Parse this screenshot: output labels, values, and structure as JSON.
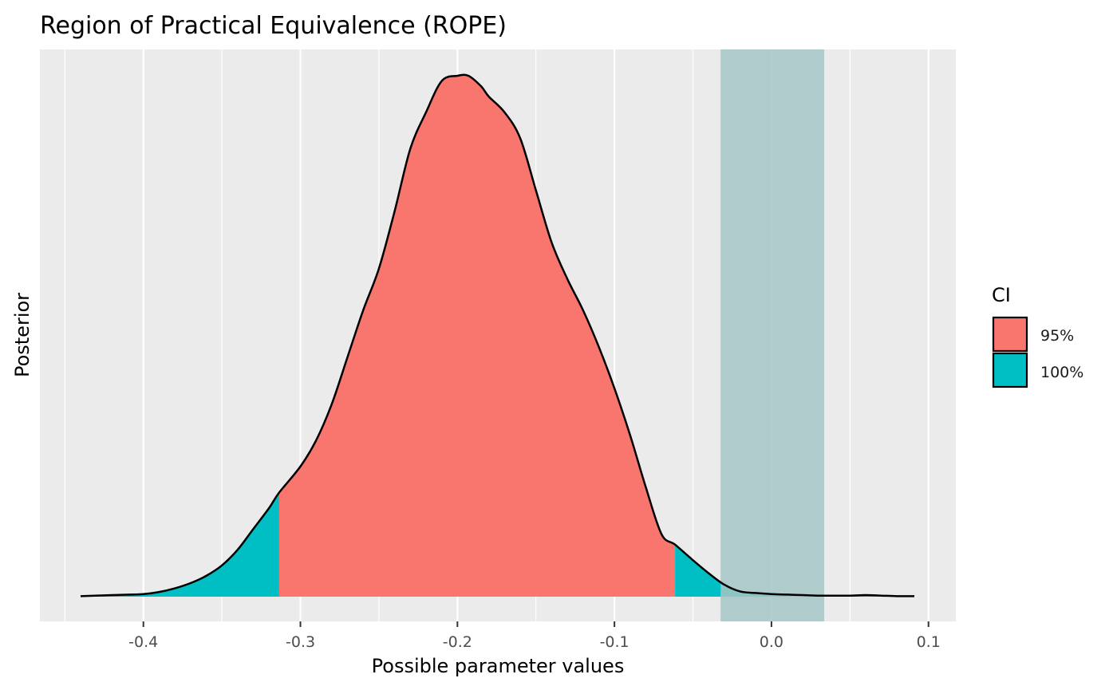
{
  "chart_data": {
    "type": "area",
    "title": "Region of Practical Equivalence (ROPE)",
    "xlabel": "Possible parameter values",
    "ylabel": "Posterior",
    "xlim": [
      -0.44,
      0.091
    ],
    "ylim": [
      0,
      1
    ],
    "x_ticks": [
      -0.4,
      -0.3,
      -0.2,
      -0.1,
      0.0,
      0.1
    ],
    "x_tick_labels": [
      "-0.4",
      "-0.3",
      "-0.2",
      "-0.1",
      "0.0",
      "0.1"
    ],
    "grid": true,
    "y_ticks_shown": false,
    "rope": {
      "lower": -0.0324,
      "upper": 0.0336,
      "color": "#A6C5C6"
    },
    "ci_bounds": {
      "lower": -0.3135,
      "upper": -0.0614
    },
    "legend": {
      "title": "CI",
      "position": "right",
      "entries": [
        {
          "label": "95%",
          "color": "#F8766D"
        },
        {
          "label": "100%",
          "color": "#00BFC4"
        }
      ]
    },
    "series": [
      {
        "name": "Posterior density",
        "x": [
          -0.44,
          -0.42,
          -0.4,
          -0.39,
          -0.38,
          -0.37,
          -0.36,
          -0.35,
          -0.34,
          -0.33,
          -0.32,
          -0.3135,
          -0.3,
          -0.29,
          -0.28,
          -0.27,
          -0.26,
          -0.25,
          -0.24,
          -0.23,
          -0.22,
          -0.21,
          -0.2,
          -0.193,
          -0.185,
          -0.18,
          -0.17,
          -0.16,
          -0.15,
          -0.14,
          -0.13,
          -0.12,
          -0.11,
          -0.1,
          -0.09,
          -0.08,
          -0.07,
          -0.0614,
          -0.05,
          -0.04,
          -0.03,
          -0.02,
          -0.01,
          0.0,
          0.01,
          0.02,
          0.03,
          0.04,
          0.05,
          0.06,
          0.07,
          0.08,
          0.091
        ],
        "y": [
          0.001,
          0.003,
          0.005,
          0.009,
          0.016,
          0.026,
          0.04,
          0.06,
          0.09,
          0.13,
          0.17,
          0.2,
          0.25,
          0.3,
          0.37,
          0.46,
          0.55,
          0.63,
          0.74,
          0.86,
          0.93,
          0.99,
          1.0,
          1.0,
          0.98,
          0.96,
          0.93,
          0.88,
          0.78,
          0.68,
          0.61,
          0.55,
          0.48,
          0.4,
          0.31,
          0.21,
          0.12,
          0.1,
          0.07,
          0.045,
          0.023,
          0.01,
          0.007,
          0.005,
          0.004,
          0.003,
          0.002,
          0.002,
          0.002,
          0.003,
          0.002,
          0.001,
          0.001
        ]
      }
    ]
  }
}
